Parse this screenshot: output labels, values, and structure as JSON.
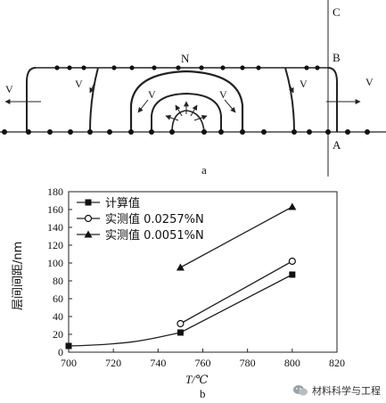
{
  "panel_a": {
    "caption": "a",
    "labels": {
      "C": "C",
      "B": "B",
      "A": "A",
      "N": "N",
      "v1": "V",
      "v2": "V",
      "v3": "V",
      "v4": "V",
      "v5": "V",
      "v6": "V"
    }
  },
  "panel_b": {
    "caption": "b"
  },
  "watermark": {
    "text": "材料科学与工程"
  },
  "chart_data": {
    "type": "line",
    "xlabel": "T/℃",
    "ylabel": "层间间距/nm",
    "xlim": [
      700,
      820
    ],
    "ylim": [
      0,
      180
    ],
    "xticks": [
      700,
      720,
      740,
      760,
      780,
      800,
      820
    ],
    "yticks": [
      0,
      20,
      40,
      60,
      80,
      100,
      120,
      140,
      160,
      180
    ],
    "grid": false,
    "legend_position": "top-left",
    "series": [
      {
        "name": "计算值",
        "marker": "filled-square",
        "x": [
          700,
          750,
          800
        ],
        "y": [
          7,
          22,
          87
        ]
      },
      {
        "name": "实测值 0.0257%N",
        "marker": "open-circle",
        "x": [
          750,
          800
        ],
        "y": [
          32,
          102
        ]
      },
      {
        "name": "实测值 0.0051%N",
        "marker": "filled-triangle",
        "x": [
          750,
          800
        ],
        "y": [
          95,
          163
        ]
      }
    ]
  }
}
